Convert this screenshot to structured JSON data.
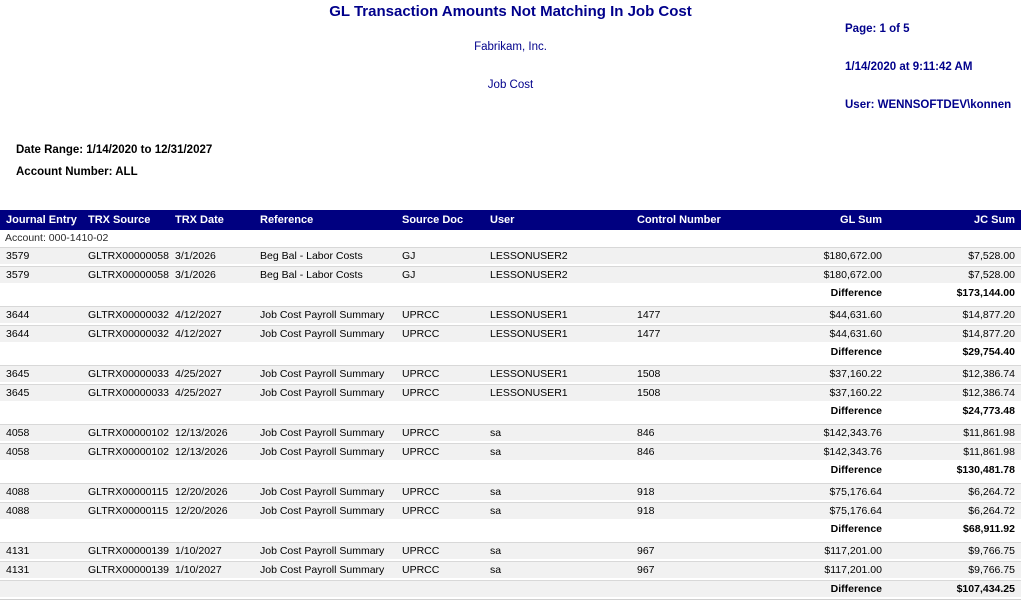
{
  "report": {
    "title": "GL Transaction Amounts Not Matching In Job Cost",
    "company": "Fabrikam, Inc.",
    "module": "Job Cost",
    "page_label": "Page: 1 of 5",
    "datetime_label": "1/14/2020 at 9:11:42 AM",
    "user_label": "User: WENNSOFTDEV\\konnen",
    "date_range_label": "Date Range: 1/14/2020 to 12/31/2027",
    "account_number_label": "Account Number: ALL",
    "account_label": "Account: 000-1410-02"
  },
  "colors": {
    "header_bar_bg": "#000080",
    "header_text": "#ffffff",
    "accent_text": "#00008B",
    "row_shade": "#f1f1f1"
  },
  "table": {
    "columns": [
      "Journal Entry",
      "TRX Source",
      "TRX Date",
      "Reference",
      "Source Doc",
      "User",
      "Control Number",
      "GL Sum",
      "JC Sum"
    ],
    "column_keys": [
      "journal-entry",
      "trx-source",
      "trx-date",
      "reference",
      "source-doc",
      "user",
      "control-number",
      "gl-sum",
      "jc-sum"
    ],
    "difference_label": "Difference",
    "groups": [
      {
        "rows": [
          [
            "3579",
            "GLTRX00000058",
            "3/1/2026",
            "Beg Bal - Labor Costs",
            "GJ",
            "LESSONUSER2",
            "",
            "$180,672.00",
            "$7,528.00"
          ],
          [
            "3579",
            "GLTRX00000058",
            "3/1/2026",
            "Beg Bal - Labor Costs",
            "GJ",
            "LESSONUSER2",
            "",
            "$180,672.00",
            "$7,528.00"
          ]
        ],
        "difference": "$173,144.00"
      },
      {
        "rows": [
          [
            "3644",
            "GLTRX00000032",
            "4/12/2027",
            "Job Cost Payroll Summary",
            "UPRCC",
            "LESSONUSER1",
            "1477",
            "$44,631.60",
            "$14,877.20"
          ],
          [
            "3644",
            "GLTRX00000032",
            "4/12/2027",
            "Job Cost Payroll Summary",
            "UPRCC",
            "LESSONUSER1",
            "1477",
            "$44,631.60",
            "$14,877.20"
          ]
        ],
        "difference": "$29,754.40"
      },
      {
        "rows": [
          [
            "3645",
            "GLTRX00000033",
            "4/25/2027",
            "Job Cost Payroll Summary",
            "UPRCC",
            "LESSONUSER1",
            "1508",
            "$37,160.22",
            "$12,386.74"
          ],
          [
            "3645",
            "GLTRX00000033",
            "4/25/2027",
            "Job Cost Payroll Summary",
            "UPRCC",
            "LESSONUSER1",
            "1508",
            "$37,160.22",
            "$12,386.74"
          ]
        ],
        "difference": "$24,773.48"
      },
      {
        "rows": [
          [
            "4058",
            "GLTRX00000102",
            "12/13/2026",
            "Job Cost Payroll Summary",
            "UPRCC",
            "sa",
            "846",
            "$142,343.76",
            "$11,861.98"
          ],
          [
            "4058",
            "GLTRX00000102",
            "12/13/2026",
            "Job Cost Payroll Summary",
            "UPRCC",
            "sa",
            "846",
            "$142,343.76",
            "$11,861.98"
          ]
        ],
        "difference": "$130,481.78"
      },
      {
        "rows": [
          [
            "4088",
            "GLTRX00000115",
            "12/20/2026",
            "Job Cost Payroll Summary",
            "UPRCC",
            "sa",
            "918",
            "$75,176.64",
            "$6,264.72"
          ],
          [
            "4088",
            "GLTRX00000115",
            "12/20/2026",
            "Job Cost Payroll Summary",
            "UPRCC",
            "sa",
            "918",
            "$75,176.64",
            "$6,264.72"
          ]
        ],
        "difference": "$68,911.92"
      },
      {
        "rows": [
          [
            "4131",
            "GLTRX00000139",
            "1/10/2027",
            "Job Cost Payroll Summary",
            "UPRCC",
            "sa",
            "967",
            "$117,201.00",
            "$9,766.75"
          ],
          [
            "4131",
            "GLTRX00000139",
            "1/10/2027",
            "Job Cost Payroll Summary",
            "UPRCC",
            "sa",
            "967",
            "$117,201.00",
            "$9,766.75"
          ]
        ],
        "difference": "$107,434.25"
      }
    ]
  }
}
